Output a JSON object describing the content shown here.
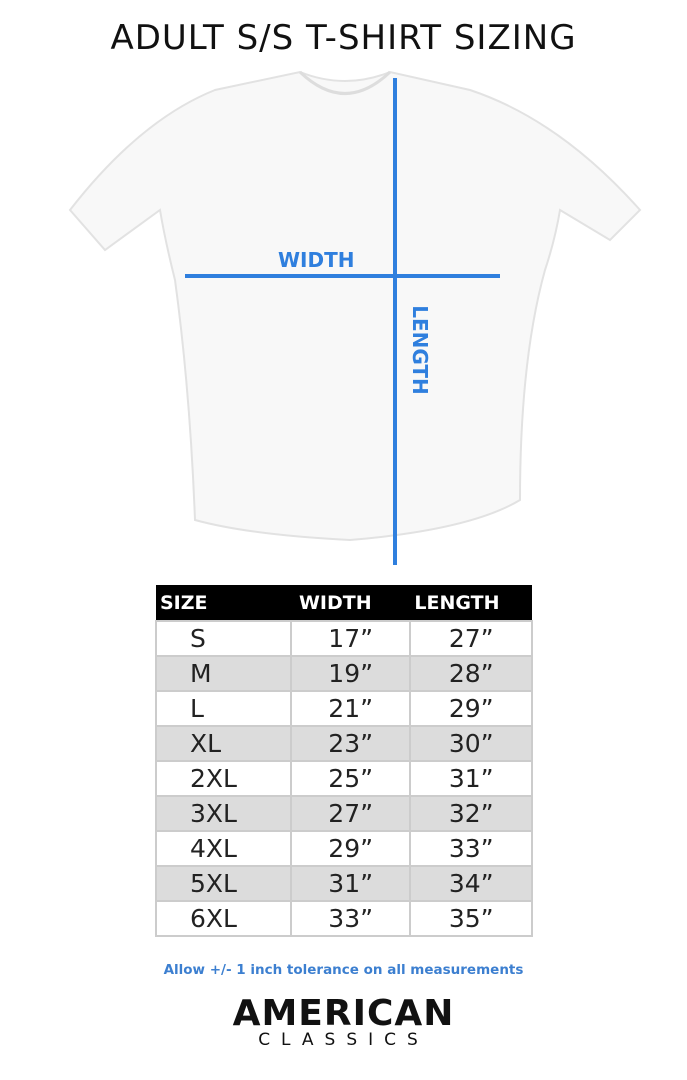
{
  "title": "ADULT S/S T-SHIRT SIZING",
  "diagram": {
    "width_label": "WIDTH",
    "length_label": "LENGTH",
    "line_color": "#2f7fde"
  },
  "table": {
    "headers": [
      "SIZE",
      "WIDTH",
      "LENGTH"
    ],
    "rows": [
      [
        "S",
        "17”",
        "27”"
      ],
      [
        "M",
        "19”",
        "28”"
      ],
      [
        "L",
        "21”",
        "29”"
      ],
      [
        "XL",
        "23”",
        "30”"
      ],
      [
        "2XL",
        "25”",
        "31”"
      ],
      [
        "3XL",
        "27”",
        "32”"
      ],
      [
        "4XL",
        "29”",
        "33”"
      ],
      [
        "5XL",
        "31”",
        "34”"
      ],
      [
        "6XL",
        "33”",
        "35”"
      ]
    ]
  },
  "note": "Allow +/- 1 inch tolerance on all measurements",
  "logo": {
    "line1": "AMERICAN",
    "line2": "CLASSICS"
  }
}
